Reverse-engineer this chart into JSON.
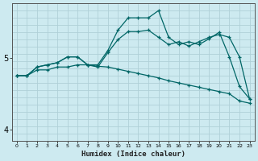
{
  "xlabel": "Humidex (Indice chaleur)",
  "background_color": "#cdeaf0",
  "grid_color": "#b0d0d8",
  "line_color": "#006666",
  "xlim_min": -0.5,
  "xlim_max": 23.5,
  "ylim_min": 3.85,
  "ylim_max": 5.75,
  "ytick_5_pos": 5.0,
  "ytick_4_pos": 4.0,
  "xticks": [
    0,
    1,
    2,
    3,
    4,
    5,
    6,
    7,
    8,
    9,
    10,
    11,
    12,
    13,
    14,
    15,
    16,
    17,
    18,
    19,
    20,
    21,
    22,
    23
  ],
  "line_top_x": [
    0,
    1,
    2,
    3,
    4,
    5,
    6,
    7,
    8,
    9,
    10,
    11,
    12,
    13,
    14,
    15,
    16,
    17,
    18,
    19,
    20,
    21,
    22,
    23
  ],
  "line_top_y": [
    4.75,
    4.75,
    4.87,
    4.9,
    4.93,
    5.01,
    5.01,
    4.9,
    4.9,
    5.1,
    5.38,
    5.55,
    5.55,
    5.55,
    5.65,
    5.28,
    5.18,
    5.22,
    5.18,
    5.26,
    5.35,
    5.01,
    4.6,
    4.43
  ],
  "line_mid_x": [
    0,
    1,
    2,
    3,
    4,
    5,
    6,
    7,
    8,
    9,
    10,
    11,
    12,
    13,
    14,
    15,
    16,
    17,
    18,
    19,
    20,
    21,
    22,
    23
  ],
  "line_mid_y": [
    4.75,
    4.75,
    4.87,
    4.9,
    4.93,
    5.01,
    5.01,
    4.9,
    4.87,
    5.07,
    5.25,
    5.36,
    5.36,
    5.38,
    5.28,
    5.18,
    5.22,
    5.16,
    5.22,
    5.28,
    5.32,
    5.28,
    5.01,
    4.43
  ],
  "line_bot_x": [
    0,
    1,
    2,
    3,
    4,
    5,
    6,
    7,
    8,
    9,
    10,
    11,
    12,
    13,
    14,
    15,
    16,
    17,
    18,
    19,
    20,
    21,
    22,
    23
  ],
  "line_bot_y": [
    4.75,
    4.75,
    4.83,
    4.83,
    4.87,
    4.87,
    4.9,
    4.9,
    4.88,
    4.87,
    4.84,
    4.81,
    4.78,
    4.75,
    4.72,
    4.68,
    4.65,
    4.62,
    4.59,
    4.56,
    4.53,
    4.5,
    4.4,
    4.37
  ]
}
